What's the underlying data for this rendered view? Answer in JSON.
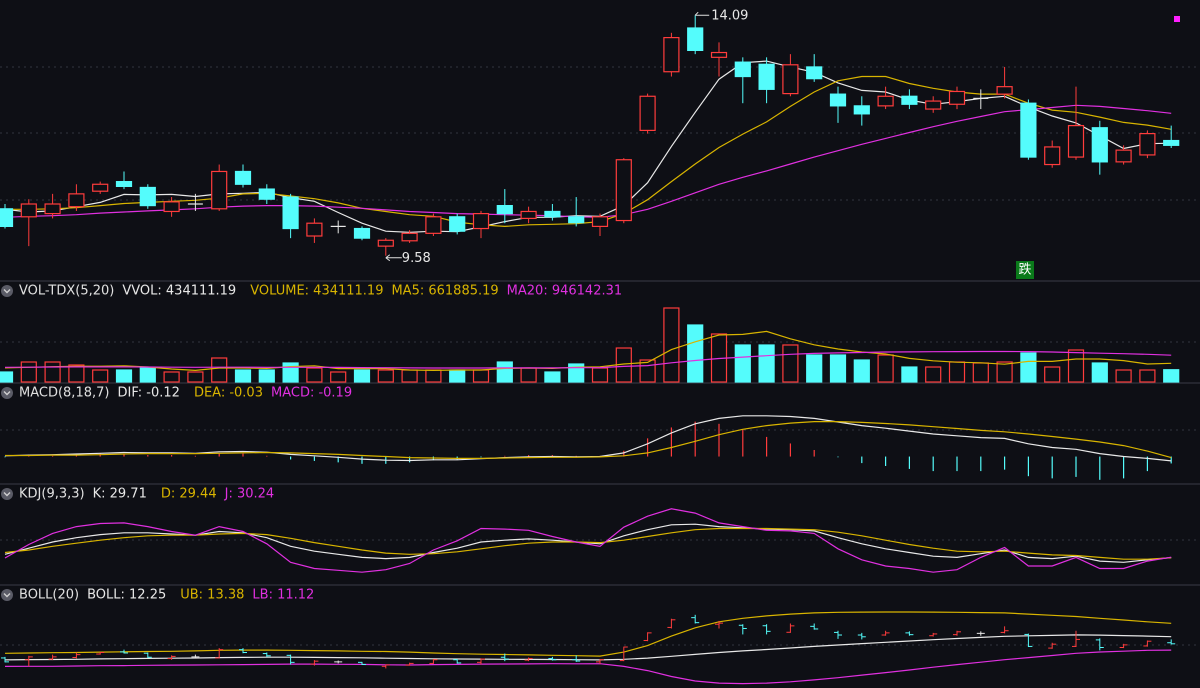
{
  "chart_data": [
    {
      "type": "candlestick",
      "ylim": [
        9.2,
        14.3
      ],
      "up_color": "#ff3c3c",
      "down_color": "#54fcfc",
      "open": [
        10.46,
        10.31,
        10.37,
        10.5,
        10.79,
        10.97,
        10.86,
        10.41,
        10.55,
        10.46,
        11.16,
        10.83,
        10.68,
        9.95,
        10.13,
        10.09,
        9.76,
        9.86,
        10.0,
        10.31,
        10.09,
        10.52,
        10.28,
        10.41,
        10.31,
        10.13,
        10.24,
        11.93,
        13.03,
        13.85,
        13.3,
        13.21,
        13.17,
        12.62,
        13.12,
        12.61,
        12.39,
        12.39,
        12.57,
        12.33,
        12.42,
        12.53,
        12.61,
        12.44,
        11.29,
        11.43,
        11.98,
        11.34,
        11.47,
        11.74
      ],
      "high": [
        10.55,
        10.64,
        10.74,
        10.92,
        10.97,
        11.16,
        10.92,
        10.68,
        10.74,
        11.29,
        11.29,
        10.92,
        10.74,
        10.28,
        10.24,
        10.13,
        9.91,
        10.06,
        10.37,
        10.37,
        10.42,
        10.83,
        10.5,
        10.55,
        10.68,
        10.37,
        11.41,
        12.62,
        13.76,
        14.09,
        13.58,
        13.3,
        13.3,
        13.36,
        13.36,
        12.75,
        12.57,
        12.75,
        12.7,
        12.57,
        12.75,
        12.7,
        13.12,
        12.51,
        11.74,
        12.75,
        12.11,
        11.65,
        11.93,
        12.02
      ],
      "low": [
        10.09,
        9.76,
        10.28,
        10.42,
        10.74,
        10.83,
        10.46,
        10.31,
        10.42,
        10.42,
        10.86,
        10.55,
        9.91,
        9.82,
        10.0,
        9.87,
        9.58,
        9.82,
        9.95,
        9.98,
        9.91,
        10.19,
        10.19,
        10.24,
        10.13,
        9.95,
        10.19,
        11.87,
        12.94,
        13.36,
        12.94,
        12.44,
        12.44,
        12.57,
        12.84,
        12.07,
        12.02,
        12.33,
        12.33,
        12.26,
        12.33,
        12.33,
        12.53,
        11.38,
        11.23,
        11.38,
        11.1,
        11.29,
        11.41,
        11.6
      ],
      "close": [
        10.13,
        10.55,
        10.55,
        10.74,
        10.92,
        10.88,
        10.52,
        10.59,
        10.55,
        11.16,
        10.92,
        10.64,
        10.09,
        10.19,
        10.13,
        9.91,
        9.87,
        10.0,
        10.31,
        10.04,
        10.37,
        10.37,
        10.41,
        10.31,
        10.2,
        10.31,
        11.38,
        12.57,
        13.67,
        13.43,
        13.39,
        12.94,
        12.7,
        13.16,
        12.9,
        12.39,
        12.24,
        12.57,
        12.42,
        12.48,
        12.66,
        12.53,
        12.75,
        11.43,
        11.62,
        12.02,
        11.34,
        11.56,
        11.87,
        11.65
      ],
      "lines": [
        {
          "color": "#e8e8e8",
          "values": [
            10.45,
            10.4,
            10.42,
            10.5,
            10.58,
            10.73,
            10.72,
            10.73,
            10.69,
            10.74,
            10.75,
            10.77,
            10.67,
            10.6,
            10.39,
            10.19,
            10.04,
            10.02,
            10.04,
            10.03,
            10.12,
            10.22,
            10.3,
            10.3,
            10.33,
            10.32,
            10.52,
            10.95,
            11.63,
            12.27,
            12.89,
            13.2,
            13.23,
            13.12,
            13.02,
            12.82,
            12.68,
            12.65,
            12.5,
            12.42,
            12.47,
            12.53,
            12.57,
            12.37,
            12.2,
            12.07,
            11.83,
            11.59,
            11.68,
            11.69
          ]
        },
        {
          "color": "#d8b400",
          "values": [
            10.45,
            10.45,
            10.46,
            10.48,
            10.52,
            10.56,
            10.58,
            10.6,
            10.62,
            10.66,
            10.74,
            10.75,
            10.7,
            10.65,
            10.57,
            10.47,
            10.41,
            10.35,
            10.32,
            10.21,
            10.16,
            10.13,
            10.16,
            10.17,
            10.18,
            10.22,
            10.37,
            10.63,
            10.97,
            11.3,
            11.61,
            11.86,
            12.09,
            12.38,
            12.65,
            12.86,
            12.94,
            12.94,
            12.81,
            12.72,
            12.65,
            12.61,
            12.61,
            12.44,
            12.31,
            12.27,
            12.18,
            12.08,
            12.03,
            11.95
          ]
        },
        {
          "color": "#e030e0",
          "values": [
            10.3,
            10.32,
            10.33,
            10.35,
            10.38,
            10.4,
            10.42,
            10.44,
            10.46,
            10.49,
            10.51,
            10.52,
            10.52,
            10.51,
            10.49,
            10.47,
            10.44,
            10.41,
            10.39,
            10.37,
            10.36,
            10.35,
            10.34,
            10.33,
            10.31,
            10.3,
            10.35,
            10.45,
            10.6,
            10.76,
            10.92,
            11.05,
            11.17,
            11.3,
            11.43,
            11.55,
            11.67,
            11.78,
            11.89,
            12.0,
            12.1,
            12.19,
            12.28,
            12.32,
            12.36,
            12.4,
            12.38,
            12.34,
            12.3,
            12.25
          ]
        }
      ],
      "high_label": "14.09",
      "low_label": "9.58",
      "signal_label": "跌"
    },
    {
      "type": "volume",
      "title": "VOL-TDX(5,20)",
      "ylim": [
        0,
        2900000
      ],
      "legend": [
        {
          "label": "VVOL: 434111.19",
          "color": "#e8e8e8"
        },
        {
          "label": "VOLUME: 434111.19",
          "color": "#d8b400"
        },
        {
          "label": "MA5: 661885.19",
          "color": "#d8b400"
        },
        {
          "label": "MA20: 946142.31",
          "color": "#e030e0"
        }
      ],
      "values": [
        354000,
        707000,
        707000,
        601000,
        424000,
        424000,
        495000,
        354000,
        354000,
        849000,
        424000,
        424000,
        672000,
        495000,
        354000,
        424000,
        424000,
        424000,
        424000,
        424000,
        424000,
        707000,
        495000,
        354000,
        637000,
        495000,
        1202000,
        778000,
        2617000,
        2016000,
        1698000,
        1309000,
        1309000,
        1309000,
        955000,
        955000,
        778000,
        955000,
        530000,
        530000,
        707000,
        672000,
        707000,
        1026000,
        530000,
        1132000,
        672000,
        424000,
        424000,
        434111.19
      ],
      "lines": [
        {
          "color": "#d8b400",
          "values": [
            500000,
            520000,
            540000,
            560000,
            559000,
            573000,
            530000,
            460000,
            410000,
            495000,
            495000,
            481000,
            545000,
            573000,
            474000,
            474000,
            474000,
            424000,
            410000,
            424000,
            424000,
            481000,
            495000,
            481000,
            523000,
            538000,
            637000,
            693000,
            1146000,
            1422000,
            1662000,
            1684000,
            1790000,
            1528000,
            1316000,
            1167000,
            1061000,
            990000,
            835000,
            750000,
            700000,
            679000,
            629000,
            728000,
            728000,
            813000,
            813000,
            757000,
            636000,
            661885.19
          ]
        },
        {
          "color": "#e030e0",
          "values": [
            520000,
            525000,
            530000,
            535000,
            535000,
            535000,
            530000,
            525000,
            520000,
            525000,
            525000,
            520000,
            520000,
            520000,
            515000,
            510000,
            505000,
            500000,
            495000,
            495000,
            495000,
            500000,
            500000,
            500000,
            505000,
            510000,
            550000,
            580000,
            680000,
            760000,
            830000,
            880000,
            930000,
            980000,
            1010000,
            1030000,
            1045000,
            1060000,
            1065000,
            1070000,
            1075000,
            1080000,
            1080000,
            1075000,
            1060000,
            1040000,
            1020000,
            1000000,
            980000,
            946142.31
          ]
        }
      ]
    },
    {
      "type": "macd",
      "title": "MACD(8,18,7)",
      "ylim": [
        -0.7,
        1.5
      ],
      "legend": [
        {
          "label": "DIF: -0.12",
          "color": "#e8e8e8"
        },
        {
          "label": "DEA: -0.03",
          "color": "#d8b400"
        },
        {
          "label": "MACD: -0.19",
          "color": "#e030e0"
        }
      ],
      "values": [
        -0.02,
        0.02,
        0.02,
        0.06,
        0.08,
        0.08,
        0.04,
        0.04,
        0.02,
        0.08,
        0.08,
        0.02,
        -0.08,
        -0.12,
        -0.16,
        -0.2,
        -0.2,
        -0.16,
        -0.1,
        -0.08,
        -0.02,
        0.02,
        0.04,
        0.04,
        0.02,
        0.02,
        0.16,
        0.5,
        0.8,
        0.96,
        0.9,
        0.74,
        0.54,
        0.36,
        0.18,
        -0.02,
        -0.18,
        -0.26,
        -0.34,
        -0.4,
        -0.4,
        -0.4,
        -0.36,
        -0.54,
        -0.6,
        -0.56,
        -0.64,
        -0.6,
        -0.4,
        -0.19
      ],
      "lines": [
        {
          "color": "#e8e8e8",
          "values": [
            0.02,
            0.04,
            0.05,
            0.07,
            0.09,
            0.11,
            0.1,
            0.1,
            0.09,
            0.13,
            0.14,
            0.12,
            0.06,
            0.02,
            -0.02,
            -0.07,
            -0.1,
            -0.11,
            -0.09,
            -0.09,
            -0.06,
            -0.03,
            -0.01,
            0.0,
            -0.01,
            0.0,
            0.1,
            0.35,
            0.65,
            0.9,
            1.05,
            1.12,
            1.12,
            1.1,
            1.05,
            0.95,
            0.85,
            0.78,
            0.7,
            0.62,
            0.57,
            0.52,
            0.5,
            0.35,
            0.25,
            0.2,
            0.08,
            0.0,
            -0.05,
            -0.12
          ]
        },
        {
          "color": "#d8b400",
          "values": [
            0.03,
            0.03,
            0.04,
            0.04,
            0.05,
            0.07,
            0.08,
            0.08,
            0.08,
            0.09,
            0.1,
            0.11,
            0.1,
            0.08,
            0.06,
            0.03,
            0.0,
            -0.03,
            -0.04,
            -0.05,
            -0.05,
            -0.04,
            -0.03,
            -0.02,
            -0.02,
            -0.01,
            0.02,
            0.1,
            0.25,
            0.42,
            0.6,
            0.75,
            0.85,
            0.92,
            0.96,
            0.96,
            0.94,
            0.91,
            0.87,
            0.82,
            0.77,
            0.72,
            0.68,
            0.62,
            0.55,
            0.48,
            0.4,
            0.3,
            0.15,
            -0.03
          ]
        }
      ]
    },
    {
      "type": "line",
      "title": "KDJ(9,3,3)",
      "ylim": [
        -10,
        120
      ],
      "legend": [
        {
          "label": "K: 29.71",
          "color": "#e8e8e8"
        },
        {
          "label": "D: 29.44",
          "color": "#d8b400"
        },
        {
          "label": "J: 30.24",
          "color": "#e030e0"
        }
      ],
      "lines": [
        {
          "color": "#e8e8e8",
          "values": [
            35,
            45,
            55,
            62,
            67,
            70,
            70,
            68,
            66,
            72,
            70,
            62,
            48,
            40,
            35,
            30,
            28,
            30,
            38,
            45,
            55,
            58,
            60,
            58,
            55,
            52,
            65,
            75,
            83,
            84,
            80,
            78,
            76,
            75,
            73,
            62,
            52,
            44,
            38,
            32,
            30,
            36,
            42,
            30,
            28,
            32,
            24,
            22,
            26,
            29.71
          ]
        },
        {
          "color": "#d8b400",
          "values": [
            38,
            42,
            48,
            53,
            58,
            62,
            65,
            66,
            66,
            68,
            69,
            67,
            61,
            54,
            48,
            42,
            37,
            35,
            36,
            39,
            44,
            49,
            53,
            55,
            55,
            54,
            58,
            64,
            70,
            75,
            77,
            77,
            77,
            76,
            75,
            71,
            65,
            58,
            51,
            45,
            40,
            39,
            40,
            37,
            34,
            33,
            30,
            27,
            27,
            29.44
          ]
        },
        {
          "color": "#e030e0",
          "values": [
            29,
            51,
            69,
            80,
            85,
            86,
            80,
            72,
            66,
            80,
            72,
            52,
            22,
            12,
            9,
            6,
            10,
            20,
            42,
            57,
            77,
            76,
            74,
            64,
            55,
            48,
            79,
            97,
            109,
            102,
            86,
            80,
            74,
            73,
            69,
            44,
            26,
            16,
            12,
            6,
            10,
            30,
            46,
            16,
            16,
            30,
            12,
            12,
            24,
            30.24
          ]
        }
      ]
    },
    {
      "type": "ohlc",
      "title": "BOLL(20)",
      "ylim": [
        8.1,
        15.0
      ],
      "legend": [
        {
          "label": "BOLL: 12.25",
          "color": "#e8e8e8"
        },
        {
          "label": "UB: 13.38",
          "color": "#d8b400"
        },
        {
          "label": "LB: 11.12",
          "color": "#e030e0"
        }
      ],
      "lines": [
        {
          "color": "#e8e8e8",
          "values": [
            10.3,
            10.32,
            10.33,
            10.35,
            10.38,
            10.4,
            10.42,
            10.44,
            10.46,
            10.49,
            10.51,
            10.52,
            10.52,
            10.51,
            10.49,
            10.47,
            10.44,
            10.41,
            10.39,
            10.37,
            10.36,
            10.35,
            10.34,
            10.33,
            10.31,
            10.3,
            10.35,
            10.45,
            10.6,
            10.76,
            10.92,
            11.05,
            11.17,
            11.3,
            11.43,
            11.55,
            11.67,
            11.78,
            11.89,
            12.0,
            12.1,
            12.19,
            12.28,
            12.32,
            12.36,
            12.4,
            12.38,
            12.34,
            12.3,
            12.25
          ]
        },
        {
          "color": "#d8b400",
          "values": [
            10.85,
            10.88,
            10.9,
            10.92,
            10.95,
            10.98,
            11.0,
            11.02,
            11.05,
            11.1,
            11.12,
            11.12,
            11.1,
            11.08,
            11.05,
            11.02,
            11.0,
            10.95,
            10.88,
            10.82,
            10.78,
            10.75,
            10.72,
            10.68,
            10.65,
            10.62,
            10.95,
            11.5,
            12.3,
            13.0,
            13.5,
            13.8,
            14.0,
            14.15,
            14.25,
            14.3,
            14.32,
            14.33,
            14.33,
            14.32,
            14.3,
            14.28,
            14.25,
            14.15,
            14.05,
            13.95,
            13.8,
            13.65,
            13.5,
            13.38
          ]
        },
        {
          "color": "#e030e0",
          "values": [
            9.75,
            9.76,
            9.76,
            9.78,
            9.81,
            9.82,
            9.84,
            9.86,
            9.87,
            9.88,
            9.9,
            9.92,
            9.94,
            9.94,
            9.93,
            9.92,
            9.88,
            9.87,
            9.9,
            9.92,
            9.94,
            9.95,
            9.96,
            9.98,
            9.97,
            9.98,
            9.75,
            9.4,
            8.9,
            8.52,
            8.34,
            8.3,
            8.34,
            8.45,
            8.61,
            8.8,
            9.02,
            9.23,
            9.45,
            9.68,
            9.9,
            10.1,
            10.31,
            10.49,
            10.67,
            10.85,
            10.96,
            11.03,
            11.1,
            11.12
          ]
        }
      ]
    }
  ]
}
